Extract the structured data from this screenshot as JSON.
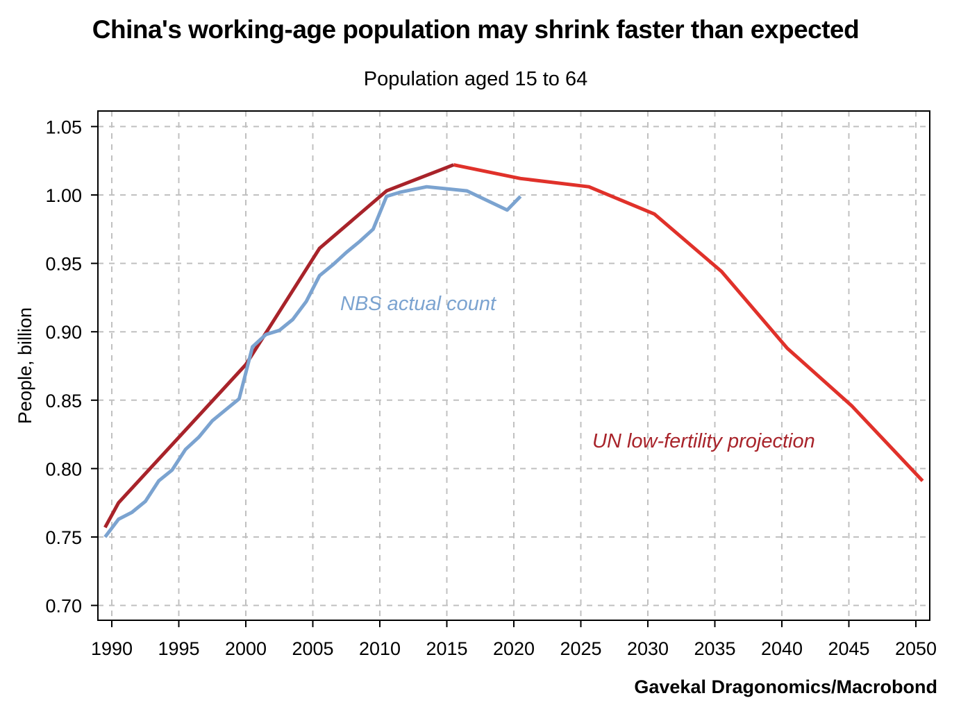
{
  "chart_data": {
    "type": "line",
    "title": "China's working-age population may shrink faster than expected",
    "subtitle": "Population aged 15 to 64",
    "xlabel": "",
    "ylabel": "People, billion",
    "source": "Gavekal Dragonomics/Macrobond",
    "xlim": [
      1989,
      2051
    ],
    "ylim": [
      0.7,
      1.05
    ],
    "xticks": [
      "1990",
      "1995",
      "2000",
      "2005",
      "2010",
      "2015",
      "2020",
      "2025",
      "2030",
      "2035",
      "2040",
      "2045",
      "2050"
    ],
    "yticks": [
      "0.70",
      "0.75",
      "0.80",
      "0.85",
      "0.90",
      "0.95",
      "1.00",
      "1.05"
    ],
    "grid": true,
    "series": [
      {
        "name": "NBS actual count",
        "color": "#7ba3d0",
        "x": [
          1989.5,
          1990.5,
          1991.5,
          1992.5,
          1993.5,
          1994.5,
          1995.5,
          1996.5,
          1997.5,
          1998.5,
          1999.5,
          2000.5,
          2001.5,
          2002.5,
          2003.5,
          2004.5,
          2005.5,
          2006.5,
          2007.5,
          2008.5,
          2009.5,
          2010.5,
          2011.5,
          2013.5,
          2016.5,
          2019.5,
          2020.5
        ],
        "y": [
          0.75,
          0.763,
          0.768,
          0.776,
          0.791,
          0.799,
          0.814,
          0.823,
          0.835,
          0.843,
          0.851,
          0.889,
          0.898,
          0.901,
          0.909,
          0.922,
          0.941,
          0.949,
          0.958,
          0.966,
          0.975,
          0.999,
          1.002,
          1.006,
          1.003,
          0.989,
          0.999
        ]
      },
      {
        "name": "UN low-fertility projection",
        "color": "#a8232a",
        "projection_color": "#e0312a",
        "x": [
          1989.5,
          1990.5,
          2000.0,
          2005.5,
          2010.5,
          2015.5,
          2020.5,
          2025.6,
          2030.5,
          2035.5,
          2040.4,
          2045.2,
          2050.5
        ],
        "y": [
          0.757,
          0.775,
          0.876,
          0.961,
          1.003,
          1.022,
          1.012,
          1.006,
          0.986,
          0.944,
          0.888,
          0.846,
          0.791
        ],
        "projection_start": 2015.5
      }
    ],
    "annotations": [
      {
        "text": "NBS actual count",
        "color": "#7ba3d0"
      },
      {
        "text": "UN low-fertility projection",
        "color": "#a8232a"
      }
    ]
  }
}
